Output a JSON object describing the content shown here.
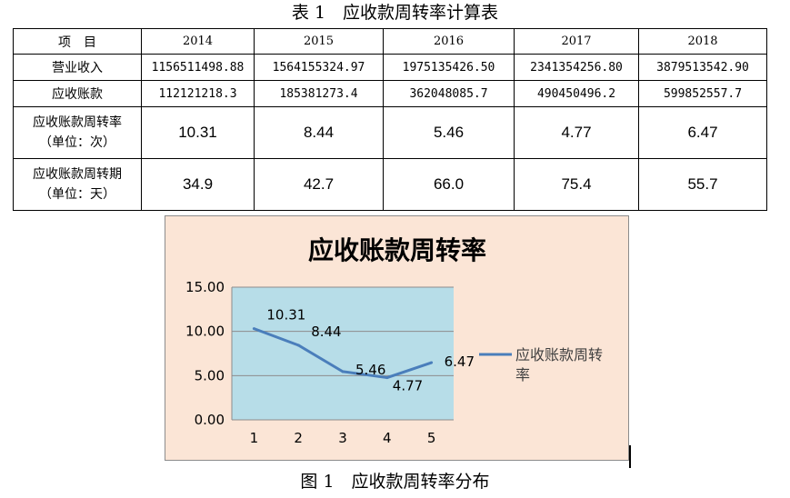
{
  "table_caption": "表 1　应收款周转率计算表",
  "table": {
    "header": [
      "项　目",
      "2014",
      "2015",
      "2016",
      "2017",
      "2018"
    ],
    "rows": [
      {
        "label": [
          "营业收入"
        ],
        "values": [
          "1156511498.88",
          "1564155324.97",
          "1975135426.50",
          "2341354256.80",
          "3879513542.90"
        ]
      },
      {
        "label": [
          "应收账款"
        ],
        "values": [
          "112121218.3",
          "185381273.4",
          "362048085.7",
          "490450496.2",
          "599852557.7"
        ]
      },
      {
        "label": [
          "应收账款周转率",
          "（单位：次）"
        ],
        "values": [
          "10.31",
          "8.44",
          "5.46",
          "4.77",
          "6.47"
        ]
      },
      {
        "label": [
          "应收账款周转期",
          "（单位：天）"
        ],
        "values": [
          "34.9",
          "42.7",
          "66.0",
          "75.4",
          "55.7"
        ]
      }
    ]
  },
  "chart_data": {
    "type": "line",
    "title": "应收账款周转率",
    "x": [
      1,
      2,
      3,
      4,
      5
    ],
    "series": [
      {
        "name": "应收账款周转率",
        "values": [
          10.31,
          8.44,
          5.46,
          4.77,
          6.47
        ]
      }
    ],
    "data_labels": [
      "10.31",
      "8.44",
      "5.46",
      "4.77",
      "6.47"
    ],
    "y_ticks": [
      "0.00",
      "5.00",
      "10.00",
      "15.00"
    ],
    "x_ticks": [
      "1",
      "2",
      "3",
      "4",
      "5"
    ],
    "ylim": [
      0,
      15
    ],
    "grid": true,
    "legend_position": "right",
    "legend_lines": [
      "应收账款周转",
      "率"
    ],
    "colors": {
      "line": "#4a7ebb",
      "plot_area": "#b7dde8",
      "chart_area": "#fbe5d6"
    }
  },
  "figure_caption": "图 1　应收款周转率分布"
}
